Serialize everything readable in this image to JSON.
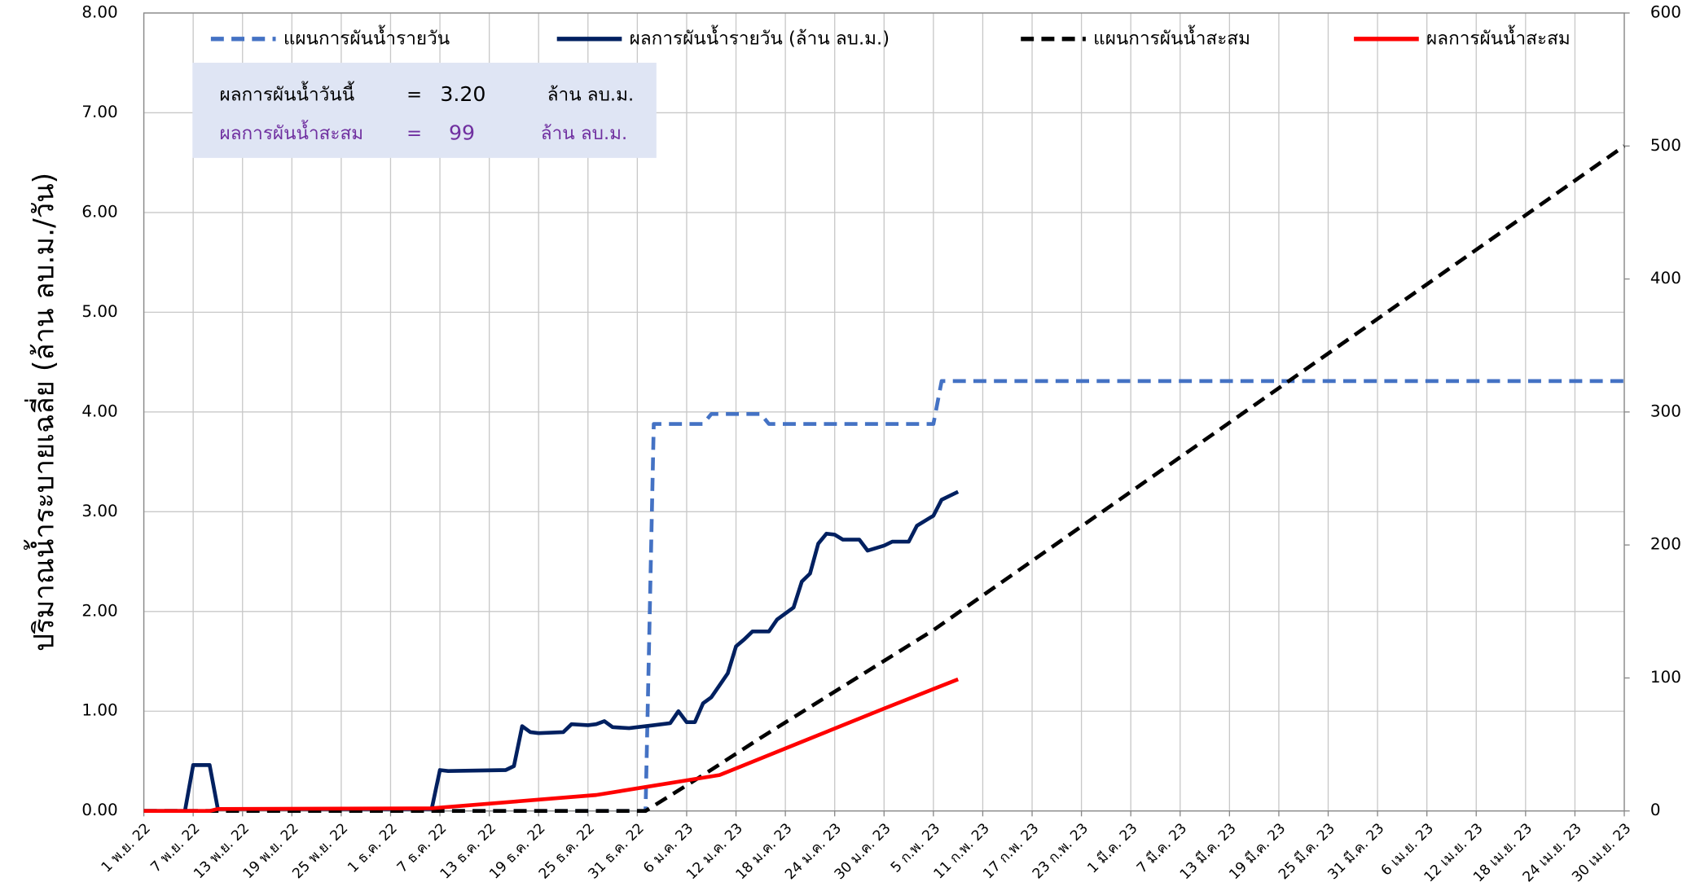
{
  "chart_data": {
    "type": "line",
    "ylabel": "ปริมาณน้ำระบายเฉลี่ย (ล้าน ลบ.ม./วัน)",
    "xlim": [
      0,
      180
    ],
    "xticks": [
      {
        "value": 0,
        "label": "1 พ.ย. 22"
      },
      {
        "value": 6,
        "label": "7 พ.ย. 22"
      },
      {
        "value": 12,
        "label": "13 พ.ย. 22"
      },
      {
        "value": 18,
        "label": "19 พ.ย. 22"
      },
      {
        "value": 24,
        "label": "25 พ.ย. 22"
      },
      {
        "value": 30,
        "label": "1 ธ.ค. 22"
      },
      {
        "value": 36,
        "label": "7 ธ.ค. 22"
      },
      {
        "value": 42,
        "label": "13 ธ.ค. 22"
      },
      {
        "value": 48,
        "label": "19 ธ.ค. 22"
      },
      {
        "value": 54,
        "label": "25 ธ.ค. 22"
      },
      {
        "value": 60,
        "label": "31 ธ.ค. 22"
      },
      {
        "value": 66,
        "label": "6 ม.ค. 23"
      },
      {
        "value": 72,
        "label": "12 ม.ค. 23"
      },
      {
        "value": 78,
        "label": "18 ม.ค. 23"
      },
      {
        "value": 84,
        "label": "24 ม.ค. 23"
      },
      {
        "value": 90,
        "label": "30 ม.ค. 23"
      },
      {
        "value": 96,
        "label": "5 ก.พ. 23"
      },
      {
        "value": 102,
        "label": "11 ก.พ. 23"
      },
      {
        "value": 108,
        "label": "17 ก.พ. 23"
      },
      {
        "value": 114,
        "label": "23 ก.พ. 23"
      },
      {
        "value": 120,
        "label": "1 มี.ค. 23"
      },
      {
        "value": 126,
        "label": "7 มี.ค. 23"
      },
      {
        "value": 132,
        "label": "13 มี.ค. 23"
      },
      {
        "value": 138,
        "label": "19 มี.ค. 23"
      },
      {
        "value": 144,
        "label": "25 มี.ค. 23"
      },
      {
        "value": 150,
        "label": "31 มี.ค. 23"
      },
      {
        "value": 156,
        "label": "6 เม.ย. 23"
      },
      {
        "value": 162,
        "label": "12 เม.ย. 23"
      },
      {
        "value": 168,
        "label": "18 เม.ย. 23"
      },
      {
        "value": 174,
        "label": "24 เม.ย. 23"
      },
      {
        "value": 180,
        "label": "30 เม.ย. 23"
      }
    ],
    "ylim": [
      0,
      8
    ],
    "yticks": [
      {
        "value": 0,
        "label": "0.00"
      },
      {
        "value": 1,
        "label": "1.00"
      },
      {
        "value": 2,
        "label": "2.00"
      },
      {
        "value": 3,
        "label": "3.00"
      },
      {
        "value": 4,
        "label": "4.00"
      },
      {
        "value": 5,
        "label": "5.00"
      },
      {
        "value": 6,
        "label": "6.00"
      },
      {
        "value": 7,
        "label": "7.00"
      },
      {
        "value": 8,
        "label": "8.00"
      }
    ],
    "y2lim": [
      0,
      600
    ],
    "y2ticks": [
      0,
      100,
      200,
      300,
      400,
      500,
      600
    ],
    "grid": true,
    "series": [
      {
        "name": "แผนการผันน้ำรายวัน",
        "color": "#4472c4",
        "style": "dashed",
        "x": [
          0,
          61,
          62,
          68,
          69,
          75,
          76,
          96,
          97,
          180
        ],
        "values": [
          0,
          0,
          3.88,
          3.88,
          3.98,
          3.98,
          3.88,
          3.88,
          4.31,
          4.31
        ]
      },
      {
        "name": "ผลการผันน้ำรายวัน (ล้าน ลบ.ม.)",
        "color": "#002060",
        "style": "solid",
        "x": [
          0,
          5,
          6,
          8,
          9,
          35,
          36,
          37,
          44,
          45,
          46,
          47,
          48,
          51,
          52,
          54,
          55,
          56,
          57,
          59,
          62,
          64,
          65,
          66,
          67,
          68,
          69,
          71,
          72,
          73,
          74,
          76,
          77,
          79,
          80,
          81,
          82,
          83,
          84,
          85,
          87,
          88,
          90,
          91,
          93,
          94,
          96,
          97,
          98,
          99
        ],
        "values": [
          0,
          0,
          0.46,
          0.46,
          0.02,
          0.02,
          0.41,
          0.4,
          0.41,
          0.45,
          0.85,
          0.79,
          0.78,
          0.79,
          0.87,
          0.86,
          0.87,
          0.9,
          0.84,
          0.83,
          0.86,
          0.88,
          1.0,
          0.89,
          0.89,
          1.08,
          1.14,
          1.38,
          1.65,
          1.72,
          1.8,
          1.8,
          1.92,
          2.04,
          2.3,
          2.38,
          2.68,
          2.78,
          2.77,
          2.72,
          2.72,
          2.61,
          2.66,
          2.7,
          2.7,
          2.86,
          2.96,
          3.12,
          3.16,
          3.2
        ]
      },
      {
        "name": "แผนการผันน้ำสะสม",
        "color": "#000000",
        "style": "dashed",
        "axis": "y2",
        "x": [
          0,
          61,
          68,
          75,
          96,
          180
        ],
        "values": [
          0,
          0,
          27,
          55,
          136,
          500
        ]
      },
      {
        "name": "ผลการผันน้ำสะสม",
        "color": "#ff0000",
        "style": "solid",
        "axis": "y2",
        "x": [
          0,
          8,
          9,
          35,
          45,
          55,
          62,
          70,
          80,
          90,
          99
        ],
        "values": [
          0,
          0,
          1.5,
          2,
          7,
          12,
          19,
          27,
          52,
          77,
          99
        ]
      }
    ],
    "info": {
      "today_label": "ผลการผันน้ำวันนี้",
      "today_eq": "=",
      "today_value": "3.20",
      "today_unit": "ล้าน ลบ.ม.",
      "total_label": "ผลการผันน้ำสะสม",
      "total_eq": "=",
      "total_value": "99",
      "total_unit": "ล้าน ลบ.ม."
    }
  }
}
